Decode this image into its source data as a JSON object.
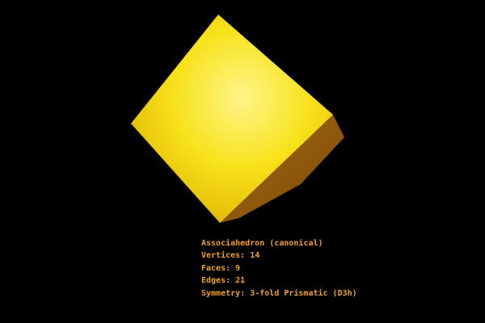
{
  "info": {
    "title": "Associahedron (canonical)",
    "lines": [
      "Vertices: 14",
      "Faces: 9",
      "Edges: 21",
      "Symmetry: 3-fold Prismatic (D3h)"
    ]
  }
}
